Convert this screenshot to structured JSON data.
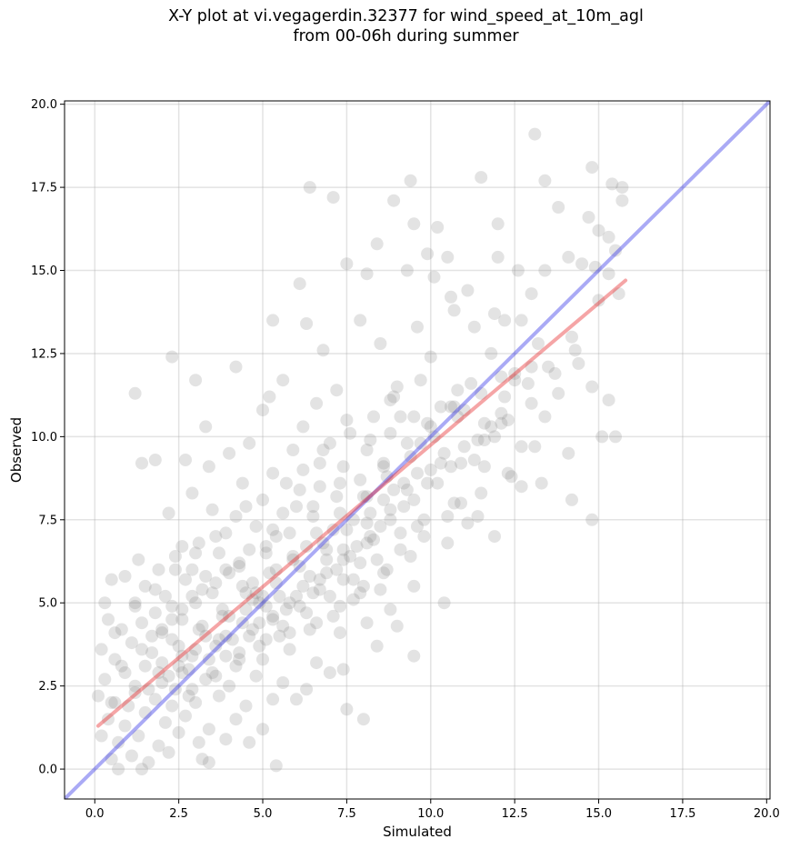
{
  "title_line1": "X-Y plot at vi.vegagerdin.32377 for wind_speed_at_10m_agl",
  "title_line2": "from 00-06h during summer",
  "chart_data": {
    "type": "scatter",
    "title": "X-Y plot at vi.vegagerdin.32377 for wind_speed_at_10m_agl from 00-06h during summer",
    "xlabel": "Simulated",
    "ylabel": "Observed",
    "xlim": [
      -0.9,
      20.1
    ],
    "ylim": [
      -0.9,
      20.1
    ],
    "xticks": [
      "0.0",
      "2.5",
      "5.0",
      "7.5",
      "10.0",
      "12.5",
      "15.0",
      "17.5",
      "20.0"
    ],
    "yticks": [
      "0.0",
      "2.5",
      "5.0",
      "7.5",
      "10.0",
      "12.5",
      "15.0",
      "17.5",
      "20.0"
    ],
    "grid": true,
    "point_color": "#808080",
    "point_alpha": 0.22,
    "points": [
      [
        13.1,
        19.1
      ],
      [
        14.8,
        18.1
      ],
      [
        11.5,
        17.8
      ],
      [
        9.4,
        17.7
      ],
      [
        13.4,
        17.7
      ],
      [
        6.4,
        17.5
      ],
      [
        15.7,
        17.5
      ],
      [
        15.4,
        17.6
      ],
      [
        7.1,
        17.2
      ],
      [
        8.9,
        17.1
      ],
      [
        15.7,
        17.1
      ],
      [
        13.8,
        16.9
      ],
      [
        14.7,
        16.6
      ],
      [
        9.5,
        16.4
      ],
      [
        12.0,
        16.4
      ],
      [
        10.2,
        16.3
      ],
      [
        15.0,
        16.2
      ],
      [
        15.3,
        16.0
      ],
      [
        15.5,
        15.6
      ],
      [
        8.4,
        15.8
      ],
      [
        10.5,
        15.4
      ],
      [
        12.0,
        15.4
      ],
      [
        14.1,
        15.4
      ],
      [
        9.9,
        15.5
      ],
      [
        7.5,
        15.2
      ],
      [
        13.4,
        15.0
      ],
      [
        14.9,
        15.1
      ],
      [
        15.6,
        14.3
      ],
      [
        12.6,
        15.0
      ],
      [
        6.1,
        14.6
      ],
      [
        11.1,
        14.4
      ],
      [
        15.3,
        14.9
      ],
      [
        8.1,
        14.9
      ],
      [
        9.3,
        15.0
      ],
      [
        10.1,
        14.8
      ],
      [
        13.0,
        14.3
      ],
      [
        11.9,
        13.7
      ],
      [
        10.6,
        14.2
      ],
      [
        14.5,
        15.2
      ],
      [
        15.0,
        14.1
      ],
      [
        10.7,
        13.8
      ],
      [
        5.3,
        13.5
      ],
      [
        6.3,
        13.4
      ],
      [
        7.9,
        13.5
      ],
      [
        9.6,
        13.3
      ],
      [
        11.3,
        13.3
      ],
      [
        12.2,
        13.5
      ],
      [
        12.7,
        13.5
      ],
      [
        14.3,
        12.6
      ],
      [
        14.2,
        13.0
      ],
      [
        13.2,
        12.8
      ],
      [
        6.8,
        12.6
      ],
      [
        8.5,
        12.8
      ],
      [
        10.0,
        12.4
      ],
      [
        11.8,
        12.5
      ],
      [
        2.3,
        12.4
      ],
      [
        4.2,
        12.1
      ],
      [
        13.5,
        12.1
      ],
      [
        12.5,
        11.7
      ],
      [
        3.0,
        11.7
      ],
      [
        5.6,
        11.7
      ],
      [
        7.2,
        11.4
      ],
      [
        9.0,
        11.5
      ],
      [
        10.8,
        11.4
      ],
      [
        12.1,
        11.8
      ],
      [
        1.2,
        11.3
      ],
      [
        14.8,
        11.5
      ],
      [
        15.3,
        11.1
      ],
      [
        12.9,
        11.6
      ],
      [
        5.2,
        11.2
      ],
      [
        6.6,
        11.0
      ],
      [
        8.8,
        11.1
      ],
      [
        10.3,
        10.9
      ],
      [
        11.0,
        10.8
      ],
      [
        3.3,
        10.3
      ],
      [
        5.0,
        10.8
      ],
      [
        6.2,
        10.3
      ],
      [
        7.5,
        10.5
      ],
      [
        9.1,
        10.6
      ],
      [
        13.4,
        10.6
      ],
      [
        11.6,
        10.4
      ],
      [
        12.1,
        10.7
      ],
      [
        15.1,
        10.0
      ],
      [
        15.5,
        10.0
      ],
      [
        13.1,
        9.7
      ],
      [
        14.1,
        9.5
      ],
      [
        12.7,
        9.7
      ],
      [
        11.9,
        10.0
      ],
      [
        4.6,
        9.8
      ],
      [
        5.9,
        9.6
      ],
      [
        7.0,
        9.8
      ],
      [
        8.2,
        9.9
      ],
      [
        9.7,
        9.8
      ],
      [
        10.4,
        9.5
      ],
      [
        11.3,
        9.3
      ],
      [
        1.8,
        9.3
      ],
      [
        1.4,
        9.2
      ],
      [
        2.7,
        9.3
      ],
      [
        4.0,
        9.5
      ],
      [
        3.4,
        9.1
      ],
      [
        6.7,
        9.2
      ],
      [
        8.6,
        9.1
      ],
      [
        10.0,
        9.0
      ],
      [
        11.6,
        9.1
      ],
      [
        12.3,
        8.9
      ],
      [
        13.3,
        8.6
      ],
      [
        14.2,
        8.1
      ],
      [
        12.7,
        8.5
      ],
      [
        4.4,
        8.6
      ],
      [
        2.9,
        8.3
      ],
      [
        5.3,
        8.9
      ],
      [
        6.1,
        8.4
      ],
      [
        7.3,
        8.6
      ],
      [
        8.1,
        8.2
      ],
      [
        9.3,
        8.4
      ],
      [
        10.7,
        8.0
      ],
      [
        11.4,
        7.6
      ],
      [
        11.1,
        7.4
      ],
      [
        2.2,
        7.7
      ],
      [
        3.5,
        7.8
      ],
      [
        4.5,
        7.9
      ],
      [
        5.6,
        7.7
      ],
      [
        6.5,
        7.9
      ],
      [
        7.7,
        7.5
      ],
      [
        8.8,
        7.8
      ],
      [
        9.8,
        7.5
      ],
      [
        11.9,
        7.0
      ],
      [
        14.8,
        7.5
      ],
      [
        3.1,
        6.8
      ],
      [
        3.9,
        7.1
      ],
      [
        4.8,
        7.3
      ],
      [
        5.4,
        7.0
      ],
      [
        6.3,
        6.7
      ],
      [
        7.1,
        7.2
      ],
      [
        8.3,
        6.9
      ],
      [
        9.1,
        7.1
      ],
      [
        10.5,
        6.8
      ],
      [
        2.4,
        6.4
      ],
      [
        2.9,
        6.0
      ],
      [
        3.7,
        6.5
      ],
      [
        4.3,
        6.2
      ],
      [
        5.1,
        6.7
      ],
      [
        5.9,
        6.3
      ],
      [
        6.9,
        6.6
      ],
      [
        7.9,
        6.2
      ],
      [
        9.4,
        6.4
      ],
      [
        1.3,
        6.3
      ],
      [
        1.9,
        6.0
      ],
      [
        2.6,
        6.7
      ],
      [
        3.3,
        5.8
      ],
      [
        4.0,
        5.9
      ],
      [
        4.7,
        5.6
      ],
      [
        5.4,
        6.0
      ],
      [
        6.4,
        5.8
      ],
      [
        7.4,
        5.7
      ],
      [
        8.6,
        5.9
      ],
      [
        9.5,
        5.5
      ],
      [
        0.9,
        5.8
      ],
      [
        1.5,
        5.5
      ],
      [
        2.1,
        5.2
      ],
      [
        2.7,
        5.7
      ],
      [
        3.5,
        5.3
      ],
      [
        4.4,
        5.5
      ],
      [
        5.0,
        5.2
      ],
      [
        5.8,
        5.0
      ],
      [
        6.7,
        5.4
      ],
      [
        7.7,
        5.1
      ],
      [
        10.4,
        5.0
      ],
      [
        0.5,
        5.7
      ],
      [
        0.3,
        5.0
      ],
      [
        1.2,
        5.0
      ],
      [
        1.8,
        4.7
      ],
      [
        2.3,
        4.9
      ],
      [
        3.0,
        5.0
      ],
      [
        3.8,
        4.6
      ],
      [
        4.5,
        4.8
      ],
      [
        5.3,
        4.5
      ],
      [
        6.1,
        4.9
      ],
      [
        7.1,
        4.6
      ],
      [
        8.1,
        4.4
      ],
      [
        8.8,
        4.8
      ],
      [
        0.4,
        4.5
      ],
      [
        0.8,
        4.2
      ],
      [
        1.4,
        4.4
      ],
      [
        2.0,
        4.1
      ],
      [
        2.6,
        4.5
      ],
      [
        3.2,
        4.3
      ],
      [
        3.9,
        4.0
      ],
      [
        4.7,
        4.2
      ],
      [
        5.5,
        4.0
      ],
      [
        6.4,
        4.2
      ],
      [
        7.3,
        4.1
      ],
      [
        8.4,
        3.7
      ],
      [
        9.0,
        4.3
      ],
      [
        9.5,
        3.4
      ],
      [
        0.2,
        3.6
      ],
      [
        0.6,
        3.3
      ],
      [
        1.1,
        3.8
      ],
      [
        1.7,
        3.5
      ],
      [
        2.3,
        3.9
      ],
      [
        2.9,
        3.4
      ],
      [
        3.6,
        3.7
      ],
      [
        4.3,
        3.5
      ],
      [
        5.0,
        3.3
      ],
      [
        5.8,
        3.6
      ],
      [
        6.6,
        3.2
      ],
      [
        7.4,
        3.0
      ],
      [
        0.3,
        2.7
      ],
      [
        0.9,
        2.9
      ],
      [
        1.5,
        3.1
      ],
      [
        2.0,
        2.6
      ],
      [
        2.6,
        2.9
      ],
      [
        3.3,
        2.7
      ],
      [
        4.0,
        2.5
      ],
      [
        4.8,
        2.8
      ],
      [
        5.6,
        2.6
      ],
      [
        6.3,
        2.4
      ],
      [
        7.0,
        2.9
      ],
      [
        0.1,
        2.2
      ],
      [
        0.6,
        2.0
      ],
      [
        1.2,
        2.3
      ],
      [
        1.8,
        2.1
      ],
      [
        2.4,
        2.4
      ],
      [
        3.0,
        2.0
      ],
      [
        3.7,
        2.2
      ],
      [
        4.5,
        1.9
      ],
      [
        5.3,
        2.1
      ],
      [
        6.0,
        2.1
      ],
      [
        7.5,
        1.8
      ],
      [
        8.0,
        1.5
      ],
      [
        0.4,
        1.5
      ],
      [
        0.9,
        1.3
      ],
      [
        1.5,
        1.7
      ],
      [
        2.1,
        1.4
      ],
      [
        2.7,
        1.6
      ],
      [
        3.4,
        1.2
      ],
      [
        4.2,
        1.5
      ],
      [
        5.0,
        1.2
      ],
      [
        0.2,
        1.0
      ],
      [
        0.7,
        0.8
      ],
      [
        1.3,
        1.0
      ],
      [
        1.9,
        0.7
      ],
      [
        2.5,
        1.1
      ],
      [
        3.1,
        0.8
      ],
      [
        3.9,
        0.9
      ],
      [
        4.6,
        0.8
      ],
      [
        0.5,
        0.3
      ],
      [
        1.1,
        0.4
      ],
      [
        1.6,
        0.2
      ],
      [
        2.2,
        0.5
      ],
      [
        3.2,
        0.3
      ],
      [
        3.4,
        0.2
      ],
      [
        1.4,
        0.0
      ],
      [
        0.7,
        0.0
      ],
      [
        5.4,
        0.1
      ],
      [
        7.9,
        5.3
      ],
      [
        8.5,
        5.4
      ],
      [
        6.9,
        5.9
      ],
      [
        7.6,
        6.4
      ],
      [
        8.2,
        7.0
      ],
      [
        9.6,
        7.3
      ],
      [
        10.9,
        8.0
      ],
      [
        11.5,
        8.3
      ],
      [
        12.4,
        8.8
      ],
      [
        9.9,
        10.4
      ],
      [
        10.6,
        10.9
      ],
      [
        11.2,
        11.6
      ],
      [
        9.7,
        11.7
      ],
      [
        8.9,
        11.2
      ],
      [
        8.3,
        10.6
      ],
      [
        7.6,
        10.1
      ],
      [
        6.8,
        9.6
      ],
      [
        6.2,
        9.0
      ],
      [
        5.7,
        8.6
      ],
      [
        5.0,
        8.1
      ],
      [
        4.2,
        7.6
      ],
      [
        3.6,
        7.0
      ],
      [
        3.0,
        6.5
      ],
      [
        2.4,
        6.0
      ],
      [
        1.8,
        5.4
      ],
      [
        1.2,
        4.9
      ],
      [
        0.6,
        4.1
      ],
      [
        13.8,
        11.3
      ],
      [
        14.4,
        12.2
      ],
      [
        13.0,
        12.1
      ],
      [
        12.2,
        11.2
      ],
      [
        11.8,
        10.3
      ],
      [
        11.0,
        9.7
      ],
      [
        10.3,
        9.2
      ],
      [
        9.6,
        8.9
      ],
      [
        8.9,
        8.4
      ],
      [
        8.2,
        7.7
      ],
      [
        7.5,
        7.2
      ],
      [
        6.8,
        6.8
      ],
      [
        6.1,
        6.1
      ],
      [
        5.4,
        5.6
      ],
      [
        4.7,
        5.1
      ],
      [
        4.0,
        4.6
      ],
      [
        3.3,
        4.0
      ],
      [
        2.6,
        3.4
      ],
      [
        1.9,
        2.9
      ],
      [
        1.2,
        2.5
      ],
      [
        0.5,
        2.0
      ],
      [
        2.8,
        3.0
      ],
      [
        3.4,
        3.3
      ],
      [
        4.1,
        3.9
      ],
      [
        4.9,
        4.4
      ],
      [
        5.7,
        4.8
      ],
      [
        6.5,
        5.3
      ],
      [
        7.2,
        6.0
      ],
      [
        7.8,
        6.7
      ],
      [
        8.5,
        7.3
      ],
      [
        9.2,
        7.9
      ],
      [
        9.9,
        8.6
      ],
      [
        10.6,
        9.1
      ],
      [
        11.4,
        9.9
      ],
      [
        12.1,
        10.4
      ],
      [
        2.0,
        3.2
      ],
      [
        2.5,
        3.7
      ],
      [
        3.1,
        4.2
      ],
      [
        3.8,
        4.8
      ],
      [
        4.5,
        5.3
      ],
      [
        5.2,
        5.9
      ],
      [
        5.9,
        6.4
      ],
      [
        6.6,
        7.1
      ],
      [
        7.3,
        7.7
      ],
      [
        8.0,
        8.2
      ],
      [
        8.7,
        8.8
      ],
      [
        9.4,
        9.4
      ],
      [
        10.1,
        10.0
      ],
      [
        10.8,
        10.6
      ],
      [
        11.5,
        11.3
      ],
      [
        12.5,
        11.9
      ],
      [
        1.0,
        1.9
      ],
      [
        1.6,
        2.4
      ],
      [
        2.2,
        2.8
      ],
      [
        2.8,
        2.2
      ],
      [
        3.5,
        2.9
      ],
      [
        4.2,
        3.1
      ],
      [
        4.9,
        3.7
      ],
      [
        5.6,
        4.3
      ],
      [
        6.3,
        4.7
      ],
      [
        7.0,
        5.2
      ],
      [
        7.7,
        5.7
      ],
      [
        8.4,
        6.3
      ],
      [
        9.1,
        6.6
      ],
      [
        9.8,
        7.0
      ],
      [
        10.5,
        7.6
      ],
      [
        2.3,
        1.9
      ],
      [
        2.9,
        2.4
      ],
      [
        3.6,
        2.8
      ],
      [
        4.3,
        3.3
      ],
      [
        5.1,
        3.9
      ],
      [
        5.8,
        4.1
      ],
      [
        6.6,
        4.4
      ],
      [
        7.3,
        4.9
      ],
      [
        8.0,
        5.5
      ],
      [
        8.7,
        6.0
      ],
      [
        1.7,
        4.0
      ],
      [
        2.3,
        4.5
      ],
      [
        2.9,
        5.2
      ],
      [
        3.6,
        5.6
      ],
      [
        4.3,
        6.1
      ],
      [
        5.1,
        6.5
      ],
      [
        5.8,
        7.1
      ],
      [
        6.5,
        7.6
      ],
      [
        7.2,
        8.2
      ],
      [
        7.9,
        8.7
      ],
      [
        8.6,
        9.2
      ],
      [
        9.3,
        9.8
      ],
      [
        10.0,
        10.3
      ],
      [
        10.7,
        10.9
      ],
      [
        0.8,
        3.1
      ],
      [
        1.4,
        3.6
      ],
      [
        2.0,
        4.2
      ],
      [
        2.6,
        4.8
      ],
      [
        3.2,
        5.4
      ],
      [
        3.9,
        6.0
      ],
      [
        4.6,
        6.6
      ],
      [
        5.3,
        7.2
      ],
      [
        6.0,
        7.9
      ],
      [
        6.7,
        8.5
      ],
      [
        7.4,
        9.1
      ],
      [
        8.1,
        9.6
      ],
      [
        8.8,
        10.1
      ],
      [
        9.5,
        10.6
      ],
      [
        4.9,
        5.0
      ],
      [
        5.1,
        4.9
      ],
      [
        4.8,
        5.3
      ],
      [
        5.5,
        5.2
      ],
      [
        4.4,
        4.4
      ],
      [
        3.7,
        3.9
      ],
      [
        3.0,
        3.6
      ],
      [
        2.5,
        3.1
      ],
      [
        6.2,
        5.5
      ],
      [
        6.9,
        6.3
      ],
      [
        7.4,
        6.6
      ],
      [
        8.1,
        7.4
      ],
      [
        8.6,
        8.1
      ],
      [
        9.2,
        8.6
      ],
      [
        3.9,
        3.4
      ],
      [
        4.6,
        4.0
      ],
      [
        5.3,
        4.6
      ],
      [
        6.0,
        5.2
      ],
      [
        6.7,
        5.7
      ],
      [
        7.4,
        6.3
      ],
      [
        8.1,
        6.8
      ],
      [
        8.8,
        7.5
      ],
      [
        9.5,
        8.1
      ],
      [
        10.2,
        8.6
      ],
      [
        10.9,
        9.2
      ],
      [
        11.6,
        9.9
      ],
      [
        12.3,
        10.5
      ],
      [
        13.0,
        11.0
      ],
      [
        13.7,
        11.9
      ]
    ],
    "fit_line": {
      "color": "#e8292a",
      "x": [
        0.1,
        15.8
      ],
      "y": [
        1.3,
        14.7
      ]
    },
    "identity_line": {
      "color": "#3434e6",
      "x": [
        -0.9,
        20.1
      ],
      "y": [
        -0.9,
        20.1
      ]
    }
  }
}
